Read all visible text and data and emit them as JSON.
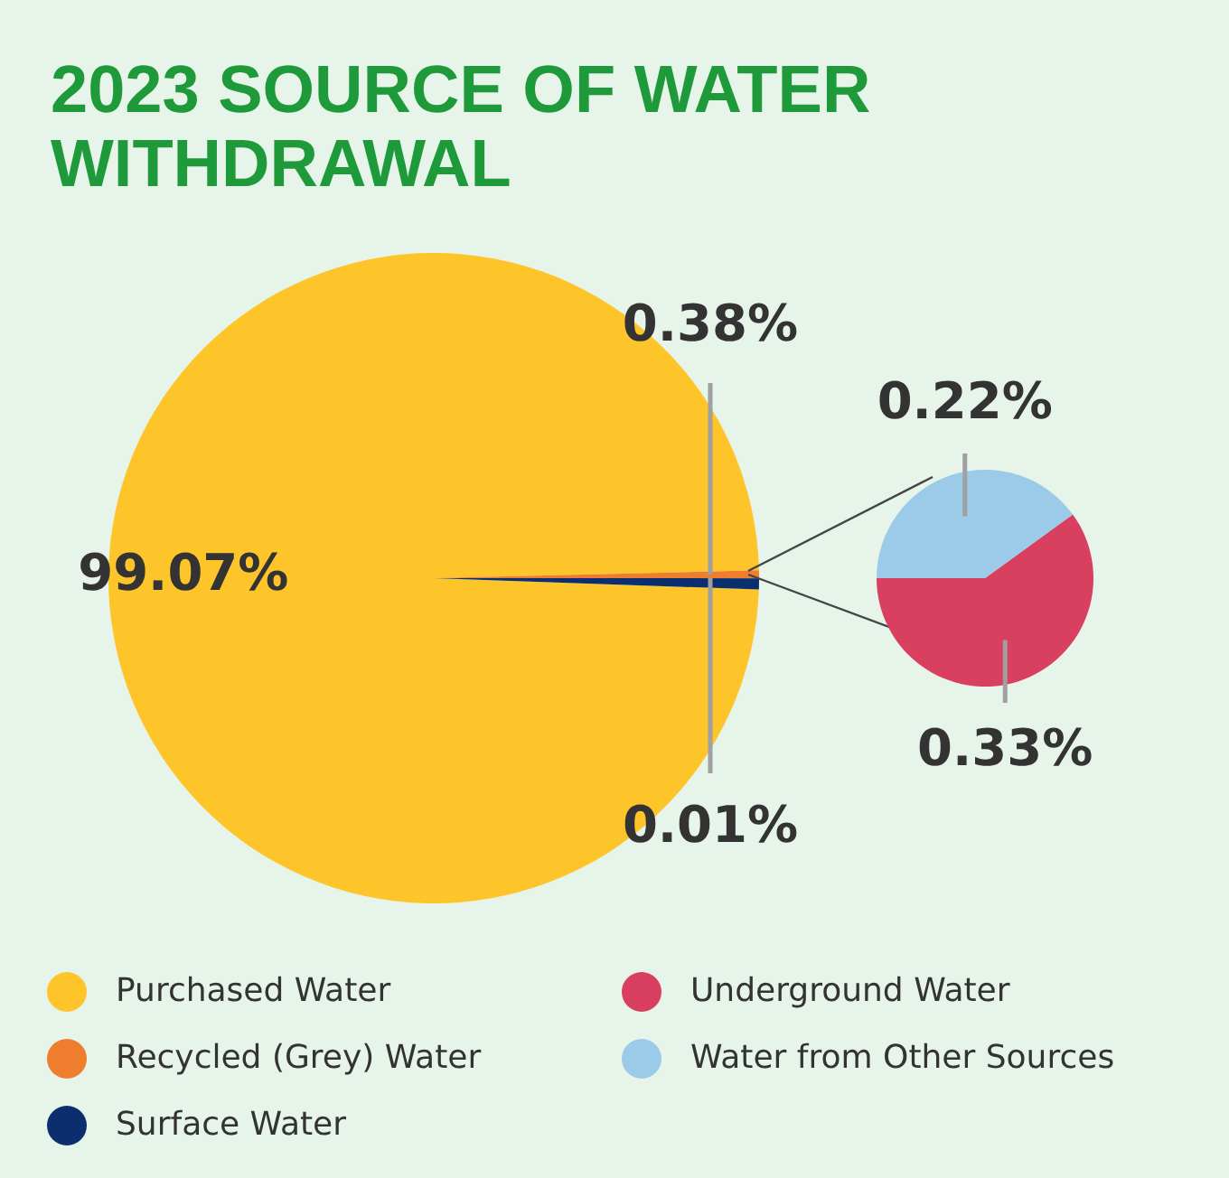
{
  "chart_data": [
    {
      "type": "pie",
      "title": "2023 SOURCE OF WATER WITHDRAWAL",
      "categories": [
        "Purchased Water",
        "Recycled (Grey) Water",
        "Surface Water",
        null
      ],
      "values": [
        99.07,
        0.38,
        0.01,
        0.55
      ],
      "colors": [
        "#fdc52a",
        "#ef7d2e",
        "#0b2f6e",
        "#0b2f6e"
      ],
      "value_labels": [
        "99.07%",
        "0.38%",
        "0.01%",
        null
      ],
      "legend": "bottom"
    },
    {
      "type": "pie",
      "categories": [
        "Underground Water",
        "Water from Other Sources"
      ],
      "values": [
        0.33,
        0.22
      ],
      "colors": [
        "#d9405f",
        "#9ccbea"
      ],
      "value_labels": [
        "0.33%",
        "0.22%"
      ],
      "legend": "bottom"
    }
  ]
}
